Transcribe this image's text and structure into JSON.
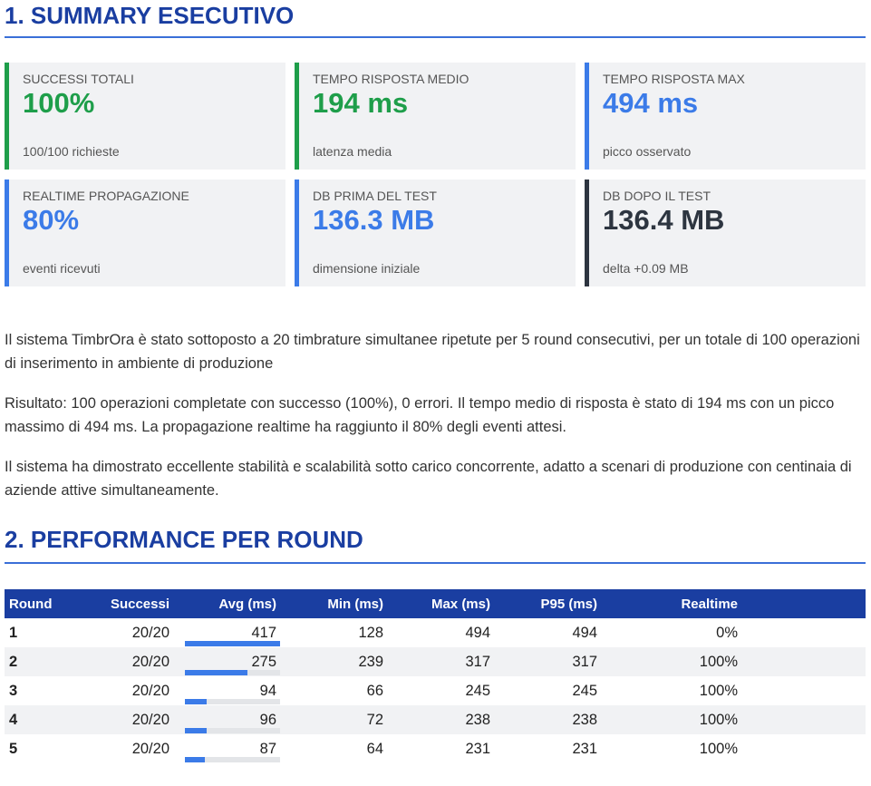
{
  "section1": {
    "title": "1. SUMMARY ESECUTIVO"
  },
  "cards": [
    {
      "label": "SUCCESSI TOTALI",
      "value": "100%",
      "sub": "100/100 richieste"
    },
    {
      "label": "TEMPO RISPOSTA MEDIO",
      "value": "194 ms",
      "sub": "latenza media"
    },
    {
      "label": "TEMPO RISPOSTA MAX",
      "value": "494 ms",
      "sub": "picco osservato"
    },
    {
      "label": "REALTIME PROPAGAZIONE",
      "value": "80%",
      "sub": "eventi ricevuti"
    },
    {
      "label": "DB PRIMA DEL TEST",
      "value": "136.3 MB",
      "sub": "dimensione iniziale"
    },
    {
      "label": "DB DOPO IL TEST",
      "value": "136.4 MB",
      "sub": "delta +0.09 MB"
    }
  ],
  "paragraphs": [
    "Il sistema TimbrOra è stato sottoposto a 20 timbrature simultanee ripetute per 5 round consecutivi, per un totale di 100 operazioni di inserimento in ambiente di produzione",
    "Risultato: 100 operazioni completate con successo (100%), 0 errori. Il tempo medio di risposta è stato di 194 ms con un picco massimo di 494 ms. La propagazione realtime ha raggiunto il 80% degli eventi attesi.",
    "Il sistema ha dimostrato eccellente stabilità e scalabilità sotto carico concorrente, adatto a scenari di produzione con centinaia di aziende attive simultaneamente."
  ],
  "section2": {
    "title": "2. PERFORMANCE PER ROUND"
  },
  "table": {
    "headers": [
      "Round",
      "Successi",
      "Avg (ms)",
      "Min (ms)",
      "Max (ms)",
      "P95 (ms)",
      "Realtime"
    ],
    "rows": [
      {
        "round": "1",
        "successi": "20/20",
        "avg": "417",
        "avg_fraction": 1.0,
        "min": "128",
        "max": "494",
        "p95": "494",
        "realtime": "0%"
      },
      {
        "round": "2",
        "successi": "20/20",
        "avg": "275",
        "avg_fraction": 0.66,
        "min": "239",
        "max": "317",
        "p95": "317",
        "realtime": "100%"
      },
      {
        "round": "3",
        "successi": "20/20",
        "avg": "94",
        "avg_fraction": 0.23,
        "min": "66",
        "max": "245",
        "p95": "245",
        "realtime": "100%"
      },
      {
        "round": "4",
        "successi": "20/20",
        "avg": "96",
        "avg_fraction": 0.23,
        "min": "72",
        "max": "238",
        "p95": "238",
        "realtime": "100%"
      },
      {
        "round": "5",
        "successi": "20/20",
        "avg": "87",
        "avg_fraction": 0.21,
        "min": "64",
        "max": "231",
        "p95": "231",
        "realtime": "100%"
      }
    ]
  },
  "colors": {
    "heading": "#1a3ea1",
    "success": "#1e9e4a",
    "accent": "#3b7be8",
    "dark": "#2d3540",
    "error": "#d03030"
  }
}
